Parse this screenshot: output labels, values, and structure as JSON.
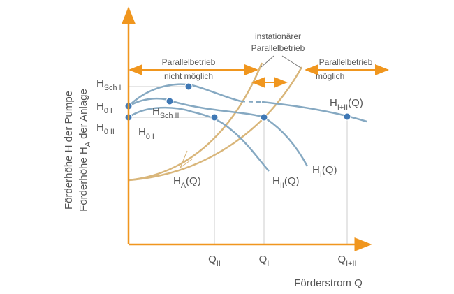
{
  "axes": {
    "y_label_1": "Förderhöhe H der Pumpe",
    "y_label_2": {
      "main": "Förderhöhe H",
      "sub": "A",
      "suffix": " der Anlage"
    },
    "x_label": "Förderstrom Q"
  },
  "ticks": [
    {
      "main": "Q",
      "sub": "II"
    },
    {
      "main": "Q",
      "sub": "I"
    },
    {
      "main": "Q",
      "sub": "I+II"
    }
  ],
  "levels": [
    {
      "main": "H",
      "sub": "Sch I"
    },
    {
      "main": "H",
      "sub": "0 I"
    },
    {
      "main": "H",
      "sub": "0 II"
    }
  ],
  "curve_labels": [
    {
      "main": "H",
      "sub": "0 I"
    },
    {
      "main": "H",
      "sub": "Sch II"
    },
    {
      "main": "H",
      "sub": "I+II",
      "suffix": "(Q)"
    },
    {
      "main": "H",
      "sub": "I",
      "suffix": "(Q)"
    },
    {
      "main": "H",
      "sub": "II",
      "suffix": "(Q)"
    },
    {
      "main": "H",
      "sub": "A",
      "suffix": "(Q)"
    }
  ],
  "regions": {
    "not_possible": [
      "Parallelbetrieb",
      "nicht möglich"
    ],
    "possible": [
      "Parallelbetrieb",
      "möglich"
    ],
    "unstable": [
      "instationärer",
      "Parallelbetrieb"
    ]
  }
}
